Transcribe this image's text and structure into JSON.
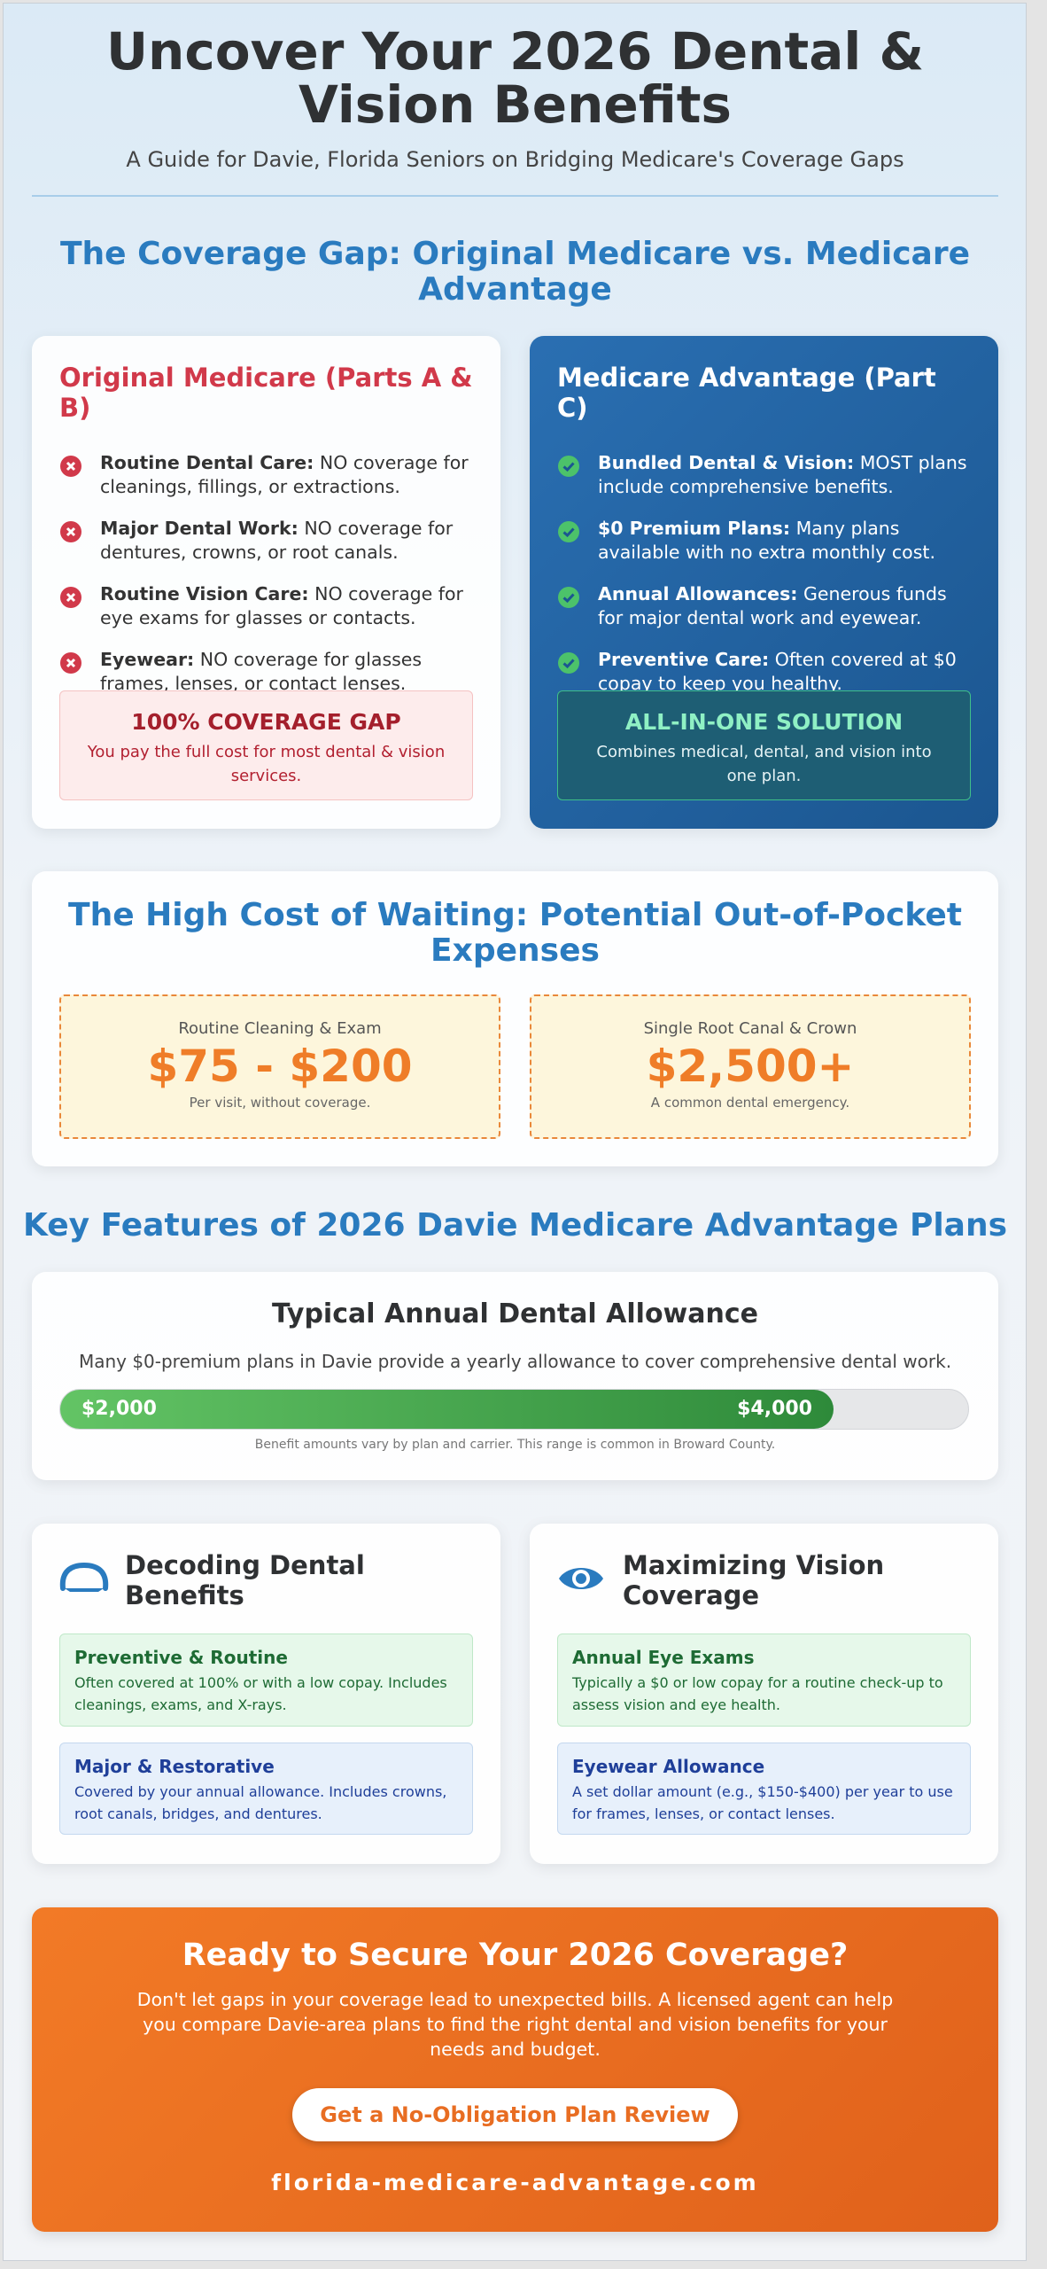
{
  "header": {
    "title": "Uncover Your 2026 Dental & Vision Benefits",
    "subtitle": "A Guide for Davie, Florida Seniors on Bridging Medicare's Coverage Gaps"
  },
  "gap_section": {
    "heading": "The Coverage Gap: Original Medicare vs. Medicare Advantage",
    "original": {
      "title": "Original Medicare (Parts A & B)",
      "items": [
        {
          "label": "Routine Dental Care:",
          "text": "NO coverage for cleanings, fillings, or extractions."
        },
        {
          "label": "Major Dental Work:",
          "text": "NO coverage for dentures, crowns, or root canals."
        },
        {
          "label": "Routine Vision Care:",
          "text": "NO coverage for eye exams for glasses or contacts."
        },
        {
          "label": "Eyewear:",
          "text": "NO coverage for glasses frames, lenses, or contact lenses."
        }
      ],
      "callout": {
        "title": "100% COVERAGE GAP",
        "text": "You pay the full cost for most dental & vision services."
      }
    },
    "advantage": {
      "title": "Medicare Advantage (Part C)",
      "items": [
        {
          "label": "Bundled Dental & Vision:",
          "text": "MOST plans include comprehensive benefits."
        },
        {
          "label": "$0 Premium Plans:",
          "text": "Many plans available with no extra monthly cost."
        },
        {
          "label": "Annual Allowances:",
          "text": "Generous funds for major dental work and eyewear."
        },
        {
          "label": "Preventive Care:",
          "text": "Often covered at $0 copay to keep you healthy."
        }
      ],
      "callout": {
        "title": "ALL-IN-ONE SOLUTION",
        "text": "Combines medical, dental, and vision into one plan."
      }
    }
  },
  "cost_section": {
    "heading": "The High Cost of Waiting: Potential Out-of-Pocket Expenses",
    "costs": [
      {
        "label": "Routine Cleaning & Exam",
        "amount": "$75 - $200",
        "note": "Per visit, without coverage."
      },
      {
        "label": "Single Root Canal & Crown",
        "amount": "$2,500+",
        "note": "A common dental emergency."
      }
    ]
  },
  "features": {
    "heading": "Key Features of 2026 Davie Medicare Advantage Plans",
    "allowance": {
      "title": "Typical Annual Dental Allowance",
      "text": "Many $0-premium plans in Davie provide a yearly allowance to cover comprehensive dental work.",
      "low": "$2,000",
      "high": "$4,000",
      "note": "Benefit amounts vary by plan and carrier. This range is common in Broward County."
    },
    "dental": {
      "title": "Decoding Dental Benefits",
      "items": [
        {
          "title": "Preventive & Routine",
          "text": "Often covered at 100% or with a low copay. Includes cleanings, exams, and X-rays."
        },
        {
          "title": "Major & Restorative",
          "text": "Covered by your annual allowance. Includes crowns, root canals, bridges, and dentures."
        }
      ]
    },
    "vision": {
      "title": "Maximizing Vision Coverage",
      "items": [
        {
          "title": "Annual Eye Exams",
          "text": "Typically a $0 or low copay for a routine check-up to assess vision and eye health."
        },
        {
          "title": "Eyewear Allowance",
          "text": "A set dollar amount (e.g., $150-$400) per year to use for frames, lenses, or contact lenses."
        }
      ]
    }
  },
  "cta": {
    "title": "Ready to Secure Your 2026 Coverage?",
    "text": "Don't let gaps in your coverage lead to unexpected bills. A licensed agent can help you compare Davie-area plans to find the right dental and vision benefits for your needs and budget.",
    "button": "Get a No-Obligation Plan Review",
    "url": "florida-medicare-advantage.com"
  }
}
